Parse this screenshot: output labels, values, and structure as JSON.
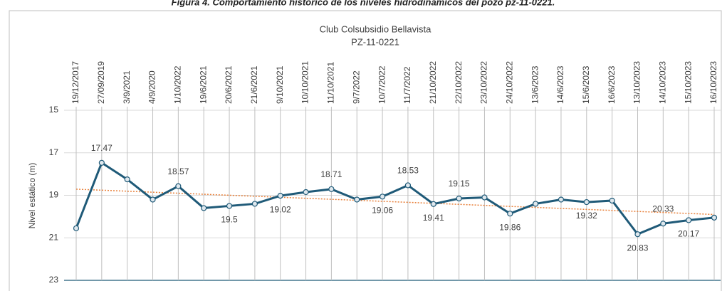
{
  "chart_data": {
    "type": "line",
    "caption": "Figura 4. Comportamiento histórico de los niveles hidrodinámicos del pozo pz-11-0221.",
    "title": "Club Colsubsidio Bellavista",
    "subtitle": "PZ-11-0221",
    "y_label": "Nivel estático (m)",
    "categories": [
      "19/12/2017",
      "27/09/2019",
      "3/9/2021",
      "4/9/2020",
      "1/10/2022",
      "19/6/2021",
      "20/6/2021",
      "21/6/2021",
      "9/10/2021",
      "10/10/2021",
      "11/10/2021",
      "9/7/2022",
      "10/7/2022",
      "11/7/2022",
      "21/10/2022",
      "22/10/2022",
      "23/10/2022",
      "24/10/2022",
      "13/6/2023",
      "14/6/2023",
      "15/6/2023",
      "16/6/2023",
      "13/10/2023",
      "14/10/2023",
      "15/10/2023",
      "16/10/2023"
    ],
    "values": [
      20.55,
      17.47,
      18.25,
      19.2,
      18.57,
      19.6,
      19.5,
      19.4,
      19.02,
      18.85,
      18.71,
      19.2,
      19.06,
      18.53,
      19.41,
      19.15,
      19.1,
      19.86,
      19.4,
      19.2,
      19.32,
      19.25,
      20.83,
      20.33,
      20.17,
      20.05
    ],
    "value_labels": [
      null,
      "17.47",
      null,
      null,
      "18.57",
      null,
      "19.5",
      null,
      "19.02",
      null,
      "18.71",
      null,
      "19.06",
      "18.53",
      "19.41",
      "19.15",
      null,
      "19.86",
      null,
      null,
      "19.32",
      null,
      "20.83",
      "20.33",
      "20.17",
      null
    ],
    "color": "#1f5a78",
    "ylim": [
      15,
      23
    ],
    "yticks": [
      15,
      17,
      19,
      21,
      23
    ],
    "y_inverted": true,
    "grid": true,
    "trendline": true,
    "trendline_color": "#e8803a"
  }
}
